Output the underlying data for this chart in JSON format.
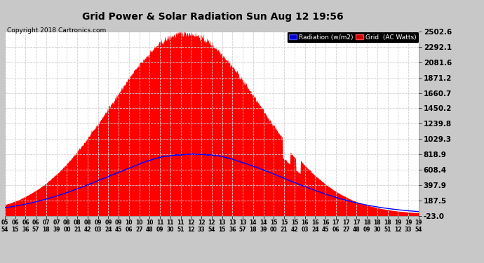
{
  "title": "Grid Power & Solar Radiation Sun Aug 12 19:56",
  "copyright": "Copyright 2018 Cartronics.com",
  "yticks": [
    2502.6,
    2292.1,
    2081.6,
    1871.2,
    1660.7,
    1450.2,
    1239.8,
    1029.3,
    818.9,
    608.4,
    397.9,
    187.5,
    -23.0
  ],
  "ymin": -23.0,
  "ymax": 2502.6,
  "legend_radiation_label": "Radiation (w/m2)",
  "legend_grid_label": "Grid  (AC Watts)",
  "bg_color": "#c8c8c8",
  "plot_bg_color": "#ffffff",
  "fill_color": "#ff0000",
  "line_color": "#0000ff",
  "grid_color": "#c8c8c8",
  "title_color": "#000000",
  "copyright_color": "#000000",
  "peak_solar_hour": 12.0,
  "peak_solar_value": 2480,
  "peak_radiation_hour": 12.3,
  "peak_radiation_value": 820,
  "tick_times": [
    "05:54",
    "06:15",
    "06:36",
    "06:57",
    "07:18",
    "07:39",
    "08:00",
    "08:21",
    "08:42",
    "09:03",
    "09:24",
    "09:45",
    "10:06",
    "10:27",
    "10:48",
    "11:09",
    "11:30",
    "11:51",
    "12:12",
    "12:33",
    "12:54",
    "13:15",
    "13:36",
    "13:57",
    "14:18",
    "14:39",
    "15:00",
    "15:21",
    "15:42",
    "16:03",
    "16:24",
    "16:45",
    "17:06",
    "17:27",
    "17:48",
    "18:09",
    "18:30",
    "18:51",
    "19:12",
    "19:33",
    "19:54"
  ]
}
